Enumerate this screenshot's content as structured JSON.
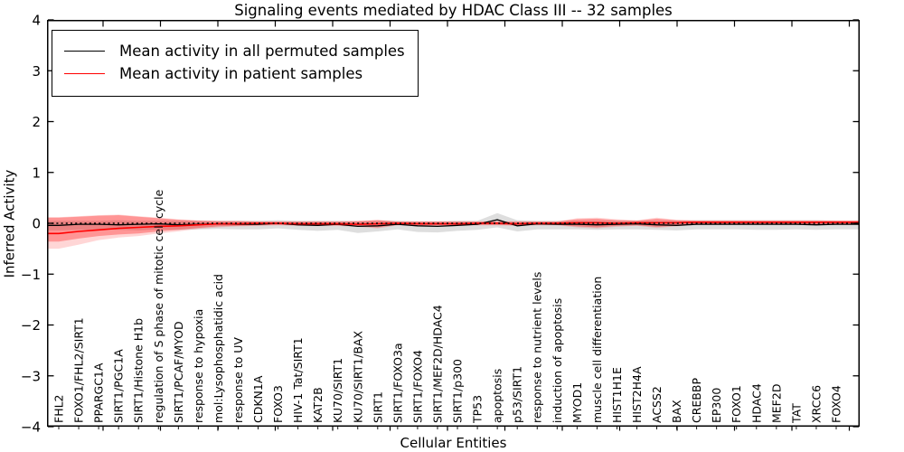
{
  "title": "Signaling events mediated by HDAC Class III -- 32 samples",
  "axes": {
    "x_label": "Cellular Entities",
    "y_label": "Inferred Activity"
  },
  "legend": {
    "position": "upper left",
    "items": [
      {
        "label": "Mean activity in all permuted samples",
        "color": "#000000"
      },
      {
        "label": "Mean activity in patient samples",
        "color": "#ff0000"
      }
    ]
  },
  "colors": {
    "permuted_line": "#000000",
    "patient_line": "#ff0000",
    "permuted_band": "rgba(0,0,0,0.13)",
    "patient_band_outer": "rgba(255,0,0,0.16)",
    "patient_band_inner": "rgba(255,0,0,0.30)",
    "zero_line": "#000000"
  },
  "chart_data": {
    "type": "line",
    "title": "Signaling events mediated by HDAC Class III -- 32 samples",
    "xlabel": "Cellular Entities",
    "ylabel": "Inferred Activity",
    "ylim": [
      -4,
      4
    ],
    "y_ticks": [
      4,
      3,
      2,
      1,
      0,
      -1,
      -2,
      -3,
      -4
    ],
    "grid": false,
    "legend_position": "upper left",
    "categories": [
      "FHL2",
      "FOXO1/FHL2/SIRT1",
      "PPARGC1A",
      "SIRT1/PGC1A",
      "SIRT1/Histone H1b",
      "regulation of S phase of mitotic cell cycle",
      "SIRT1/PCAF/MYOD",
      "response to hypoxia",
      "mol:Lysophosphatidic acid",
      "response to UV",
      "CDKN1A",
      "FOXO3",
      "HIV-1 Tat/SIRT1",
      "KAT2B",
      "KU70/SIRT1",
      "KU70/SIRT1/BAX",
      "SIRT1",
      "SIRT1/FOXO3a",
      "SIRT1/FOXO4",
      "SIRT1/MEF2D/HDAC4",
      "SIRT1/p300",
      "TP53",
      "apoptosis",
      "p53/SIRT1",
      "response to nutrient levels",
      "induction of apoptosis",
      "MYOD1",
      "muscle cell differentiation",
      "HIST1H1E",
      "HIST2H4A",
      "ACSS2",
      "BAX",
      "CREBBP",
      "EP300",
      "FOXO1",
      "HDAC4",
      "MEF2D",
      "TAT",
      "XRCC6",
      "FOXO4"
    ],
    "series": [
      {
        "name": "Mean activity in all permuted samples",
        "color": "#000000",
        "style": "solid",
        "values": [
          -0.04,
          -0.02,
          -0.02,
          -0.03,
          -0.02,
          -0.01,
          -0.03,
          -0.02,
          -0.01,
          -0.02,
          -0.02,
          0.0,
          -0.03,
          -0.04,
          -0.02,
          -0.06,
          -0.05,
          -0.02,
          -0.05,
          -0.06,
          -0.04,
          -0.02,
          0.07,
          -0.05,
          -0.01,
          -0.02,
          -0.02,
          -0.03,
          -0.02,
          -0.01,
          -0.03,
          -0.04,
          -0.02,
          -0.02,
          -0.02,
          -0.02,
          -0.02,
          -0.02,
          -0.03,
          -0.02
        ]
      },
      {
        "name": "Mean activity in patient samples",
        "color": "#ff0000",
        "style": "solid",
        "values": [
          -0.2,
          -0.16,
          -0.13,
          -0.1,
          -0.08,
          -0.06,
          -0.05,
          -0.03,
          -0.01,
          -0.01,
          0.0,
          0.0,
          -0.01,
          -0.01,
          -0.01,
          -0.02,
          -0.01,
          0.0,
          -0.01,
          -0.01,
          -0.01,
          0.0,
          0.0,
          -0.01,
          0.0,
          0.0,
          0.01,
          0.01,
          0.0,
          0.01,
          0.01,
          0.01,
          0.02,
          0.02,
          0.02,
          0.02,
          0.02,
          0.02,
          0.02,
          0.02
        ]
      },
      {
        "name": "zero reference",
        "color": "#000000",
        "style": "dotted",
        "constant": 0
      }
    ],
    "bands": [
      {
        "name": "permuted std band",
        "color": "rgba(0,0,0,0.13)",
        "lo": [
          -0.14,
          -0.13,
          -0.12,
          -0.13,
          -0.14,
          -0.12,
          -0.13,
          -0.12,
          -0.11,
          -0.12,
          -0.12,
          -0.1,
          -0.13,
          -0.15,
          -0.13,
          -0.19,
          -0.16,
          -0.12,
          -0.17,
          -0.18,
          -0.15,
          -0.13,
          -0.08,
          -0.16,
          -0.12,
          -0.12,
          -0.12,
          -0.13,
          -0.12,
          -0.12,
          -0.13,
          -0.14,
          -0.12,
          -0.12,
          -0.12,
          -0.13,
          -0.13,
          -0.12,
          -0.13,
          -0.12
        ],
        "hi": [
          0.05,
          0.05,
          0.05,
          0.06,
          0.05,
          0.05,
          0.05,
          0.05,
          0.05,
          0.05,
          0.05,
          0.06,
          0.05,
          0.05,
          0.05,
          0.04,
          0.05,
          0.05,
          0.04,
          0.04,
          0.05,
          0.05,
          0.2,
          0.06,
          0.05,
          0.05,
          0.05,
          0.05,
          0.05,
          0.05,
          0.05,
          0.05,
          0.06,
          0.06,
          0.06,
          0.06,
          0.06,
          0.06,
          0.06,
          0.05
        ]
      },
      {
        "name": "patient std band outer",
        "color": "rgba(255,0,0,0.16)",
        "lo": [
          -0.5,
          -0.42,
          -0.33,
          -0.28,
          -0.25,
          -0.2,
          -0.16,
          -0.11,
          -0.08,
          -0.06,
          -0.05,
          -0.04,
          -0.05,
          -0.05,
          -0.05,
          -0.07,
          -0.1,
          -0.04,
          -0.05,
          -0.05,
          -0.05,
          -0.04,
          -0.04,
          -0.05,
          -0.04,
          -0.04,
          -0.08,
          -0.1,
          -0.07,
          -0.05,
          -0.09,
          -0.06,
          -0.03,
          -0.03,
          -0.03,
          -0.03,
          -0.03,
          -0.03,
          -0.03,
          -0.03
        ],
        "hi": [
          0.12,
          0.14,
          0.16,
          0.17,
          0.14,
          0.11,
          0.08,
          0.06,
          0.05,
          0.05,
          0.04,
          0.04,
          0.04,
          0.04,
          0.04,
          0.05,
          0.07,
          0.04,
          0.04,
          0.04,
          0.04,
          0.04,
          0.04,
          0.04,
          0.04,
          0.04,
          0.1,
          0.11,
          0.08,
          0.06,
          0.11,
          0.07,
          0.06,
          0.06,
          0.06,
          0.06,
          0.06,
          0.06,
          0.06,
          0.06
        ]
      },
      {
        "name": "patient std band inner",
        "color": "rgba(255,0,0,0.30)",
        "lo": [
          -0.36,
          -0.3,
          -0.25,
          -0.22,
          -0.2,
          -0.16,
          -0.13,
          -0.09,
          -0.06,
          -0.05,
          -0.04,
          -0.03,
          -0.04,
          -0.04,
          -0.04,
          -0.06,
          -0.08,
          -0.03,
          -0.04,
          -0.04,
          -0.04,
          -0.03,
          -0.03,
          -0.04,
          -0.03,
          -0.03,
          -0.06,
          -0.08,
          -0.05,
          -0.04,
          -0.07,
          -0.05,
          -0.02,
          -0.02,
          -0.02,
          -0.02,
          -0.02,
          -0.02,
          -0.02,
          -0.02
        ],
        "hi": [
          0.11,
          0.13,
          0.15,
          0.16,
          0.13,
          0.1,
          0.07,
          0.05,
          0.04,
          0.04,
          0.03,
          0.03,
          0.03,
          0.03,
          0.03,
          0.04,
          0.06,
          0.03,
          0.03,
          0.03,
          0.03,
          0.03,
          0.03,
          0.03,
          0.03,
          0.03,
          0.08,
          0.09,
          0.06,
          0.05,
          0.09,
          0.06,
          0.05,
          0.05,
          0.05,
          0.05,
          0.05,
          0.05,
          0.05,
          0.05
        ]
      }
    ]
  }
}
